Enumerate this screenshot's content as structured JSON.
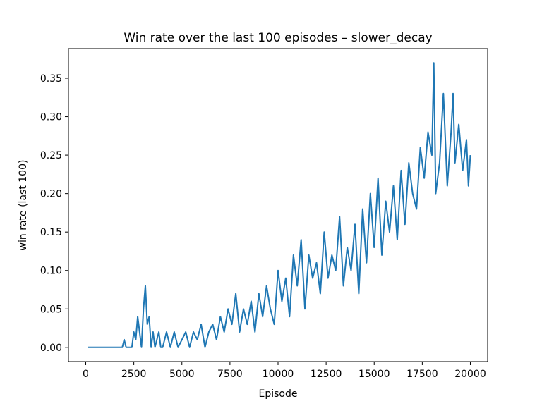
{
  "chart_data": {
    "type": "line",
    "title": "Win rate over the last 100 episodes – slower_decay",
    "xlabel": "Episode",
    "ylabel": "win rate (last 100)",
    "xlim": [
      -900,
      20900
    ],
    "ylim": [
      -0.0185,
      0.3885
    ],
    "x_ticks": [
      0,
      2500,
      5000,
      7500,
      10000,
      12500,
      15000,
      17500,
      20000
    ],
    "x_tick_labels": [
      "0",
      "2500",
      "5000",
      "7500",
      "10000",
      "12500",
      "15000",
      "17500",
      "20000"
    ],
    "y_ticks": [
      0.0,
      0.05,
      0.1,
      0.15,
      0.2,
      0.25,
      0.3,
      0.35
    ],
    "y_tick_labels": [
      "0.00",
      "0.05",
      "0.10",
      "0.15",
      "0.20",
      "0.25",
      "0.30",
      "0.35"
    ],
    "grid": false,
    "legend": "none",
    "line_color": "#1f77b4",
    "series": [
      {
        "x": [
          100,
          1900,
          2000,
          2100,
          2200,
          2400,
          2500,
          2600,
          2700,
          2800,
          2900,
          3000,
          3100,
          3200,
          3300,
          3400,
          3500,
          3600,
          3700,
          3800,
          3900,
          4000,
          4200,
          4400,
          4600,
          4800,
          5000,
          5200,
          5400,
          5600,
          5800,
          6000,
          6200,
          6400,
          6600,
          6800,
          7000,
          7200,
          7400,
          7600,
          7800,
          8000,
          8200,
          8400,
          8600,
          8800,
          9000,
          9200,
          9400,
          9600,
          9800,
          10000,
          10200,
          10400,
          10600,
          10800,
          11000,
          11200,
          11400,
          11600,
          11800,
          12000,
          12200,
          12400,
          12600,
          12800,
          13000,
          13200,
          13400,
          13600,
          13800,
          14000,
          14200,
          14400,
          14600,
          14800,
          15000,
          15200,
          15400,
          15600,
          15800,
          16000,
          16200,
          16400,
          16600,
          16800,
          17000,
          17200,
          17400,
          17600,
          17800,
          18000,
          18100,
          18200,
          18400,
          18600,
          18800,
          19000,
          19100,
          19200,
          19400,
          19600,
          19800,
          19900,
          20000
        ],
        "y": [
          0.0,
          0.0,
          0.01,
          0.0,
          0.0,
          0.0,
          0.02,
          0.01,
          0.04,
          0.02,
          0.0,
          0.05,
          0.08,
          0.03,
          0.04,
          0.0,
          0.02,
          0.0,
          0.01,
          0.02,
          0.0,
          0.0,
          0.02,
          0.0,
          0.02,
          0.0,
          0.01,
          0.02,
          0.0,
          0.02,
          0.01,
          0.03,
          0.0,
          0.02,
          0.03,
          0.01,
          0.04,
          0.02,
          0.05,
          0.03,
          0.07,
          0.02,
          0.05,
          0.03,
          0.06,
          0.02,
          0.07,
          0.04,
          0.08,
          0.05,
          0.03,
          0.1,
          0.06,
          0.09,
          0.04,
          0.12,
          0.08,
          0.14,
          0.05,
          0.12,
          0.09,
          0.11,
          0.07,
          0.15,
          0.09,
          0.12,
          0.1,
          0.17,
          0.08,
          0.13,
          0.1,
          0.16,
          0.07,
          0.18,
          0.11,
          0.2,
          0.13,
          0.22,
          0.12,
          0.19,
          0.15,
          0.21,
          0.14,
          0.23,
          0.16,
          0.24,
          0.2,
          0.18,
          0.26,
          0.22,
          0.28,
          0.25,
          0.37,
          0.2,
          0.24,
          0.33,
          0.21,
          0.28,
          0.33,
          0.24,
          0.29,
          0.23,
          0.27,
          0.21,
          0.25
        ]
      }
    ]
  }
}
